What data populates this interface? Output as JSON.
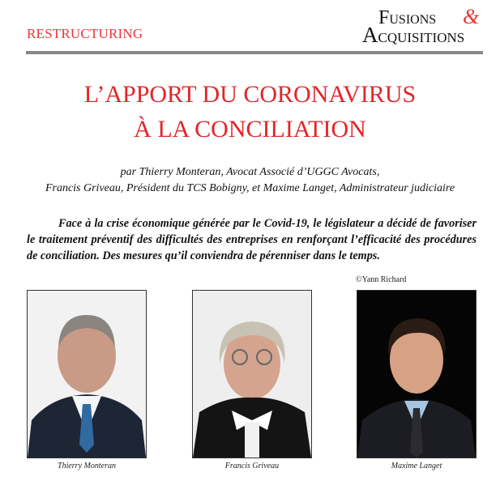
{
  "header": {
    "section": "RESTRUCTURING",
    "logo_text": "Fusions & Acquisitions",
    "accent_color": "#e0262a"
  },
  "article": {
    "title_line1": "L’APPORT DU CORONAVIRUS",
    "title_line2": "À LA CONCILIATION",
    "byline_line1": "par Thierry Monteran, Avocat Associé d’UGGC Avocats,",
    "byline_line2": "Francis Griveau, Président du TCS Bobigny, et Maxime Langet, Administrateur judiciaire",
    "lead": "Face à la crise économique générée par le Covid-19, le législateur a décidé de favoriser le traitement préventif des difficultés des entreprises en renforçant l’efficacité des procédures de conciliation. Des mesures qu’il conviendra de pérenniser dans le temps.",
    "photo_credit": "©Yann Richard"
  },
  "photos": [
    {
      "caption": "Thierry Monteran"
    },
    {
      "caption": "Francis Griveau"
    },
    {
      "caption": "Maxime Langet"
    }
  ]
}
